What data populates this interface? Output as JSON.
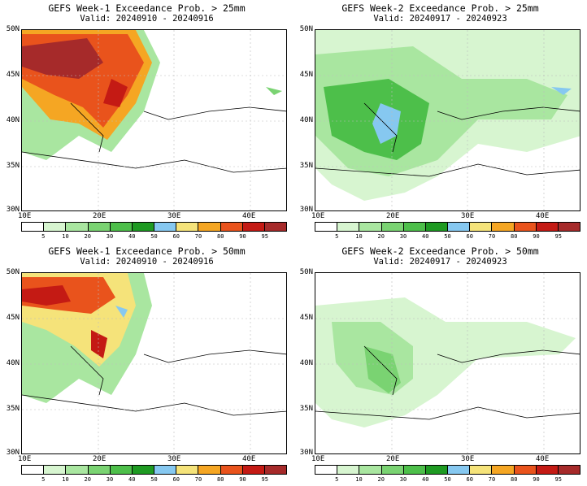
{
  "panels": [
    {
      "title": "GEFS Week-1 Exceedance Prob. > 25mm",
      "valid": "Valid: 20240910 - 20240916"
    },
    {
      "title": "GEFS Week-2 Exceedance Prob. > 25mm",
      "valid": "Valid: 20240917 - 20240923"
    },
    {
      "title": "GEFS Week-1 Exceedance Prob. > 50mm",
      "valid": "Valid: 20240910 - 20240916"
    },
    {
      "title": "GEFS Week-2 Exceedance Prob. > 50mm",
      "valid": "Valid: 20240917 - 20240923"
    }
  ],
  "axes": {
    "lat_labels": [
      "50N",
      "45N",
      "40N",
      "35N",
      "30N"
    ],
    "lon_labels": [
      "10E",
      "20E",
      "30E",
      "40E"
    ]
  },
  "colorbar": {
    "levels": [
      "5",
      "10",
      "20",
      "30",
      "40",
      "50",
      "60",
      "70",
      "80",
      "90",
      "95"
    ],
    "colors": [
      "#ffffff",
      "#d7f5d0",
      "#a9e6a0",
      "#7ad372",
      "#4dbf4a",
      "#1e9a22",
      "#86c8f0",
      "#f5e37a",
      "#f5a623",
      "#e9531c",
      "#c41a14",
      "#a62a2a"
    ]
  }
}
